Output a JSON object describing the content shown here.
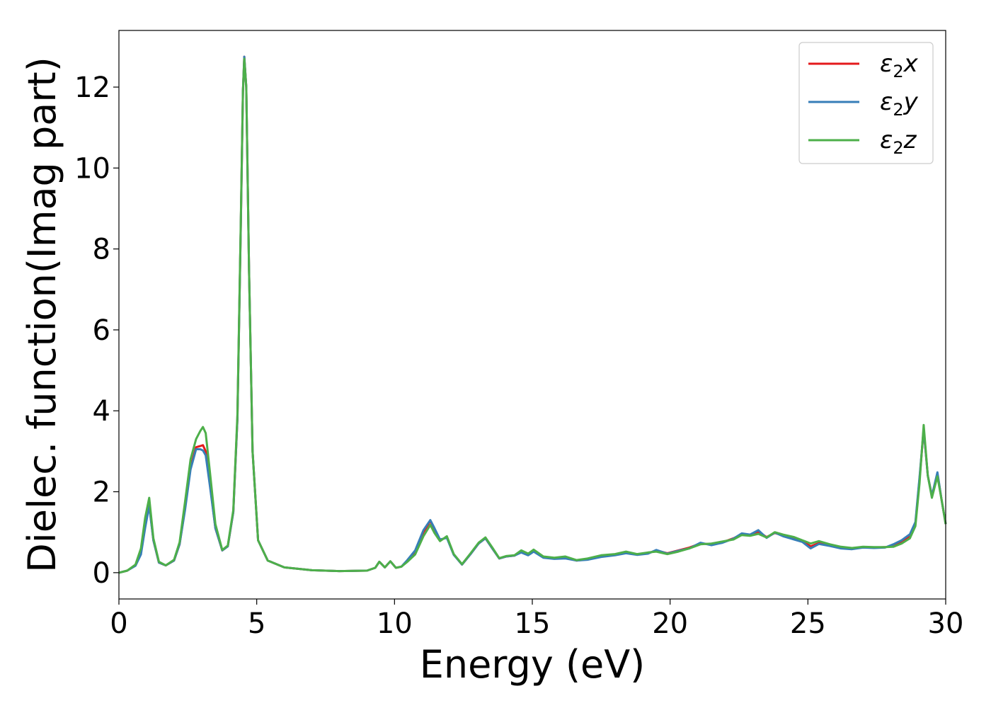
{
  "chart_data": {
    "type": "line",
    "title": "",
    "xlabel": "Energy (eV)",
    "ylabel": "Dielec. function(Imag part)",
    "xlim": [
      0,
      30
    ],
    "ylim": [
      -0.65,
      13.4
    ],
    "xticks": [
      0,
      5,
      10,
      15,
      20,
      25,
      30
    ],
    "xtick_labels": [
      "0",
      "5",
      "10",
      "15",
      "20",
      "25",
      "30"
    ],
    "yticks": [
      0,
      2,
      4,
      6,
      8,
      10,
      12
    ],
    "ytick_labels": [
      "0",
      "2",
      "4",
      "6",
      "8",
      "10",
      "12"
    ],
    "grid": false,
    "legend_position": "top-right",
    "legend": [
      {
        "symbol": "ε",
        "sub": "2",
        "axis": "x",
        "color": "#e41a1c"
      },
      {
        "symbol": "ε",
        "sub": "2",
        "axis": "y",
        "color": "#377eb8"
      },
      {
        "symbol": "ε",
        "sub": "2",
        "axis": "z",
        "color": "#4daf4a"
      }
    ],
    "series": [
      {
        "name": "ε2x",
        "color": "#e41a1c",
        "x": [
          0,
          0.3,
          0.6,
          0.8,
          0.95,
          1.1,
          1.25,
          1.45,
          1.7,
          2.0,
          2.2,
          2.4,
          2.6,
          2.8,
          2.95,
          3.05,
          3.15,
          3.3,
          3.5,
          3.75,
          3.95,
          4.15,
          4.3,
          4.42,
          4.5,
          4.55,
          4.62,
          4.72,
          4.85,
          5.05,
          5.4,
          6.0,
          7.0,
          8.0,
          9.0,
          9.3,
          9.45,
          9.65,
          9.85,
          10.05,
          10.25,
          10.45,
          10.75,
          11.05,
          11.3,
          11.45,
          11.65,
          11.9,
          12.15,
          12.45,
          12.75,
          13.05,
          13.3,
          13.55,
          13.8,
          14.05,
          14.35,
          14.6,
          14.85,
          15.05,
          15.4,
          15.8,
          16.2,
          16.6,
          17.0,
          17.5,
          18.0,
          18.4,
          18.8,
          19.2,
          19.5,
          19.9,
          20.3,
          20.7,
          21.1,
          21.5,
          21.9,
          22.3,
          22.6,
          22.9,
          23.2,
          23.5,
          23.8,
          24.1,
          24.5,
          24.8,
          25.1,
          25.4,
          25.8,
          26.2,
          26.6,
          27.0,
          27.4,
          27.8,
          28.1,
          28.4,
          28.7,
          28.9,
          29.05,
          29.2,
          29.35,
          29.5,
          29.7,
          29.85,
          30.0
        ],
        "y": [
          0,
          0.05,
          0.18,
          0.5,
          1.2,
          1.7,
          0.8,
          0.25,
          0.18,
          0.3,
          0.7,
          1.6,
          2.6,
          3.1,
          3.13,
          3.15,
          3.0,
          2.2,
          1.1,
          0.55,
          0.65,
          1.5,
          3.8,
          8.5,
          11.9,
          12.75,
          12.0,
          7.5,
          3.0,
          0.8,
          0.3,
          0.13,
          0.06,
          0.04,
          0.05,
          0.12,
          0.27,
          0.13,
          0.28,
          0.12,
          0.15,
          0.28,
          0.5,
          1.0,
          1.28,
          1.05,
          0.8,
          0.88,
          0.45,
          0.2,
          0.45,
          0.72,
          0.85,
          0.6,
          0.35,
          0.4,
          0.42,
          0.52,
          0.45,
          0.55,
          0.38,
          0.35,
          0.37,
          0.3,
          0.33,
          0.4,
          0.44,
          0.5,
          0.45,
          0.48,
          0.55,
          0.48,
          0.55,
          0.62,
          0.72,
          0.7,
          0.75,
          0.85,
          0.95,
          0.93,
          1.02,
          0.88,
          0.98,
          0.92,
          0.85,
          0.78,
          0.65,
          0.73,
          0.68,
          0.62,
          0.6,
          0.63,
          0.62,
          0.63,
          0.66,
          0.75,
          0.9,
          1.2,
          2.3,
          3.55,
          2.4,
          1.9,
          2.45,
          1.8,
          1.2
        ]
      },
      {
        "name": "ε2y",
        "color": "#377eb8",
        "x": [
          0,
          0.3,
          0.6,
          0.8,
          0.95,
          1.1,
          1.25,
          1.45,
          1.7,
          2.0,
          2.2,
          2.4,
          2.6,
          2.8,
          2.95,
          3.05,
          3.15,
          3.3,
          3.5,
          3.75,
          3.95,
          4.15,
          4.3,
          4.42,
          4.5,
          4.55,
          4.62,
          4.72,
          4.85,
          5.05,
          5.4,
          6.0,
          7.0,
          8.0,
          9.0,
          9.3,
          9.45,
          9.65,
          9.85,
          10.05,
          10.25,
          10.45,
          10.75,
          11.05,
          11.3,
          11.45,
          11.65,
          11.9,
          12.15,
          12.45,
          12.75,
          13.05,
          13.3,
          13.55,
          13.8,
          14.05,
          14.35,
          14.6,
          14.85,
          15.05,
          15.4,
          15.8,
          16.2,
          16.6,
          17.0,
          17.5,
          18.0,
          18.4,
          18.8,
          19.2,
          19.5,
          19.9,
          20.3,
          20.7,
          21.1,
          21.5,
          21.9,
          22.3,
          22.6,
          22.9,
          23.2,
          23.5,
          23.8,
          24.1,
          24.5,
          24.8,
          25.1,
          25.4,
          25.8,
          26.2,
          26.6,
          27.0,
          27.4,
          27.8,
          28.1,
          28.4,
          28.7,
          28.9,
          29.05,
          29.2,
          29.35,
          29.5,
          29.7,
          29.85,
          30.0
        ],
        "y": [
          0,
          0.05,
          0.17,
          0.45,
          1.1,
          1.65,
          0.8,
          0.25,
          0.18,
          0.3,
          0.7,
          1.55,
          2.55,
          3.05,
          3.05,
          3.02,
          2.9,
          2.15,
          1.1,
          0.55,
          0.65,
          1.5,
          3.8,
          8.5,
          11.9,
          12.75,
          12.0,
          7.5,
          3.0,
          0.8,
          0.3,
          0.13,
          0.06,
          0.04,
          0.05,
          0.12,
          0.27,
          0.13,
          0.28,
          0.12,
          0.15,
          0.3,
          0.55,
          1.05,
          1.3,
          1.1,
          0.82,
          0.86,
          0.44,
          0.2,
          0.45,
          0.72,
          0.85,
          0.6,
          0.35,
          0.4,
          0.42,
          0.5,
          0.43,
          0.52,
          0.37,
          0.34,
          0.35,
          0.3,
          0.32,
          0.39,
          0.43,
          0.48,
          0.44,
          0.47,
          0.56,
          0.47,
          0.54,
          0.6,
          0.74,
          0.68,
          0.74,
          0.84,
          0.97,
          0.94,
          1.05,
          0.86,
          0.99,
          0.9,
          0.82,
          0.76,
          0.6,
          0.71,
          0.66,
          0.6,
          0.58,
          0.62,
          0.61,
          0.62,
          0.7,
          0.8,
          0.95,
          1.25,
          2.35,
          3.55,
          2.4,
          1.9,
          2.48,
          1.8,
          1.2
        ]
      },
      {
        "name": "ε2z",
        "color": "#4daf4a",
        "x": [
          0,
          0.3,
          0.6,
          0.8,
          0.95,
          1.1,
          1.25,
          1.45,
          1.7,
          2.0,
          2.2,
          2.4,
          2.6,
          2.8,
          2.95,
          3.05,
          3.15,
          3.3,
          3.5,
          3.75,
          3.95,
          4.15,
          4.3,
          4.42,
          4.5,
          4.55,
          4.62,
          4.72,
          4.85,
          5.05,
          5.4,
          6.0,
          7.0,
          8.0,
          9.0,
          9.3,
          9.45,
          9.65,
          9.85,
          10.05,
          10.25,
          10.45,
          10.75,
          11.05,
          11.3,
          11.45,
          11.65,
          11.9,
          12.15,
          12.45,
          12.75,
          13.05,
          13.3,
          13.55,
          13.8,
          14.05,
          14.35,
          14.6,
          14.85,
          15.05,
          15.4,
          15.8,
          16.2,
          16.6,
          17.0,
          17.5,
          18.0,
          18.4,
          18.8,
          19.2,
          19.5,
          19.9,
          20.3,
          20.7,
          21.1,
          21.5,
          21.9,
          22.3,
          22.6,
          22.9,
          23.2,
          23.5,
          23.8,
          24.1,
          24.5,
          24.8,
          25.1,
          25.4,
          25.8,
          26.2,
          26.6,
          27.0,
          27.4,
          27.8,
          28.1,
          28.4,
          28.7,
          28.9,
          29.05,
          29.2,
          29.35,
          29.5,
          29.7,
          29.85,
          30.0
        ],
        "y": [
          0,
          0.05,
          0.2,
          0.6,
          1.35,
          1.85,
          0.85,
          0.27,
          0.18,
          0.32,
          0.75,
          1.75,
          2.8,
          3.3,
          3.5,
          3.6,
          3.45,
          2.5,
          1.2,
          0.56,
          0.67,
          1.55,
          3.9,
          8.6,
          11.9,
          12.7,
          12.0,
          7.5,
          3.0,
          0.8,
          0.3,
          0.13,
          0.06,
          0.04,
          0.05,
          0.12,
          0.27,
          0.13,
          0.28,
          0.12,
          0.15,
          0.26,
          0.45,
          0.9,
          1.18,
          0.98,
          0.78,
          0.9,
          0.46,
          0.21,
          0.47,
          0.74,
          0.87,
          0.62,
          0.36,
          0.41,
          0.43,
          0.55,
          0.47,
          0.57,
          0.4,
          0.37,
          0.4,
          0.31,
          0.35,
          0.43,
          0.46,
          0.52,
          0.46,
          0.5,
          0.52,
          0.46,
          0.52,
          0.6,
          0.7,
          0.72,
          0.77,
          0.82,
          0.93,
          0.91,
          0.96,
          0.87,
          1.0,
          0.94,
          0.88,
          0.8,
          0.72,
          0.78,
          0.7,
          0.64,
          0.61,
          0.64,
          0.63,
          0.63,
          0.64,
          0.72,
          0.85,
          1.15,
          2.2,
          3.65,
          2.4,
          1.85,
          2.38,
          1.8,
          1.2
        ]
      }
    ]
  }
}
